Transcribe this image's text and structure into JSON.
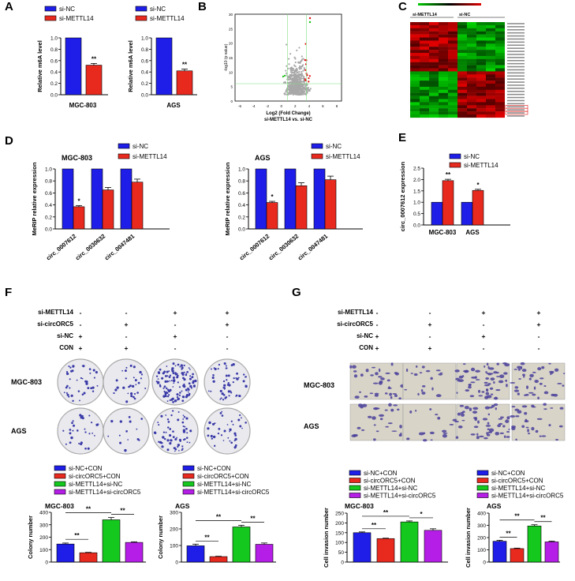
{
  "panel_labels": [
    "A",
    "B",
    "C",
    "D",
    "E",
    "F",
    "G"
  ],
  "colors": {
    "blue": "#1e1ee8",
    "red": "#e8291e",
    "green": "#14c81e",
    "purple": "#b41ee6",
    "heat_red": "#e01010",
    "heat_green": "#10c010"
  },
  "panelA": {
    "legend": [
      "si-NC",
      "si-METTL14"
    ],
    "ylabel": "Relative m6A level",
    "charts": [
      {
        "xlabel": "MGC-803",
        "values": [
          1.0,
          0.52
        ],
        "sig": "**",
        "ylim": [
          0,
          1.0
        ],
        "ticks": [
          "0.0",
          "0.2",
          "0.4",
          "0.6",
          "0.8",
          "1.0"
        ]
      },
      {
        "xlabel": "AGS",
        "values": [
          1.0,
          0.42
        ],
        "sig": "**",
        "ylim": [
          0,
          1.0
        ],
        "ticks": [
          "0.0",
          "0.2",
          "0.4",
          "0.6",
          "0.8",
          "1.0"
        ]
      }
    ]
  },
  "panelB": {
    "xlabel1": "Log2 (Fold Change)",
    "xlabel2": "si-METTL14 vs. si-NC",
    "ylabel": "-log10 (p value)",
    "xticks": [
      "-6",
      "-4",
      "-2",
      "0",
      "2",
      "4",
      "6",
      "8"
    ],
    "yticks": [
      "0",
      "5",
      "10",
      "15",
      "20",
      "25",
      "30"
    ]
  },
  "panelC": {
    "group1": "si-METTL14",
    "group2": "si-NC"
  },
  "panelD": {
    "legend": [
      "si-NC",
      "si-METTL14"
    ],
    "ylabel": "MeRIP relative expression",
    "categories": [
      "circ_0007612",
      "circ_0030632",
      "circ_0047481"
    ],
    "charts": [
      {
        "title": "MGC-803",
        "ncvalues": [
          1.0,
          1.0,
          1.0
        ],
        "values": [
          0.37,
          0.65,
          0.78
        ],
        "errs": [
          0.02,
          0.04,
          0.05
        ],
        "sig": [
          "*",
          "",
          ""
        ],
        "ticks": [
          "0.0",
          "0.2",
          "0.4",
          "0.6",
          "0.8",
          "1.0"
        ]
      },
      {
        "title": "AGS",
        "ncvalues": [
          1.0,
          1.0,
          1.0
        ],
        "values": [
          0.44,
          0.72,
          0.82
        ],
        "errs": [
          0.02,
          0.05,
          0.06
        ],
        "sig": [
          "*",
          "",
          ""
        ],
        "ticks": [
          "0.0",
          "0.2",
          "0.4",
          "0.6",
          "0.8",
          "1.0"
        ]
      }
    ]
  },
  "panelE": {
    "legend": [
      "si-NC",
      "si-METTL14"
    ],
    "ylabel": "circ_0007612 expression",
    "categories": [
      "MGC-803",
      "AGS"
    ],
    "ncvalues": [
      1.0,
      1.0
    ],
    "values": [
      1.95,
      1.52
    ],
    "errs": [
      0.06,
      0.05
    ],
    "sig": [
      "**",
      "*"
    ],
    "ticks": [
      "0.0",
      "0.5",
      "1.0",
      "1.5",
      "2.0",
      "2.5"
    ]
  },
  "treatments": {
    "rows": [
      "si-METTL14",
      "si-circORC5",
      "si-NC",
      "CON"
    ],
    "F": [
      [
        "-",
        "-",
        "+",
        "+"
      ],
      [
        "-",
        "+",
        "-",
        "+"
      ],
      [
        "+",
        "-",
        "+",
        "-"
      ],
      [
        "+",
        "+",
        "-",
        "-"
      ]
    ],
    "G": [
      [
        "-",
        "-",
        "+",
        "+"
      ],
      [
        "-",
        "+",
        "-",
        "+"
      ],
      [
        "+",
        "-",
        "+",
        "-"
      ],
      [
        "+",
        "+",
        "-",
        "-"
      ]
    ]
  },
  "cell_lines": [
    "MGC-803",
    "AGS"
  ],
  "group_legend": [
    "si-NC+CON",
    "si-circORC5+CON",
    "si-METTL14+si-NC",
    "si-METTL14+si-circORC5"
  ],
  "panelF": {
    "ylabel": "Colony number",
    "charts": [
      {
        "title": "MGC-803",
        "values": [
          145,
          75,
          340,
          158
        ],
        "errs": [
          8,
          3,
          18,
          5
        ],
        "ylim": [
          0,
          400
        ],
        "ticks": [
          "0",
          "100",
          "200",
          "300",
          "400"
        ]
      },
      {
        "title": "AGS",
        "values": [
          98,
          33,
          212,
          107
        ],
        "errs": [
          10,
          2,
          10,
          8
        ],
        "ylim": [
          0,
          300
        ],
        "ticks": [
          "0",
          "100",
          "200",
          "300"
        ]
      }
    ],
    "sig": [
      "**",
      "**",
      "**"
    ]
  },
  "panelG": {
    "ylabel": "Cell invasion number",
    "charts": [
      {
        "title": "MGC-803",
        "values": [
          150,
          120,
          205,
          162
        ],
        "errs": [
          4,
          2,
          5,
          8
        ],
        "ylim": [
          0,
          250
        ],
        "ticks": [
          "0",
          "50",
          "100",
          "150",
          "200",
          "250"
        ],
        "sig": [
          "**",
          "**",
          "*"
        ]
      },
      {
        "title": "AGS",
        "values": [
          170,
          110,
          295,
          165
        ],
        "errs": [
          8,
          4,
          10,
          6
        ],
        "ylim": [
          0,
          400
        ],
        "ticks": [
          "0",
          "100",
          "200",
          "300",
          "400"
        ],
        "sig": [
          "**",
          "**",
          "**"
        ]
      }
    ]
  }
}
